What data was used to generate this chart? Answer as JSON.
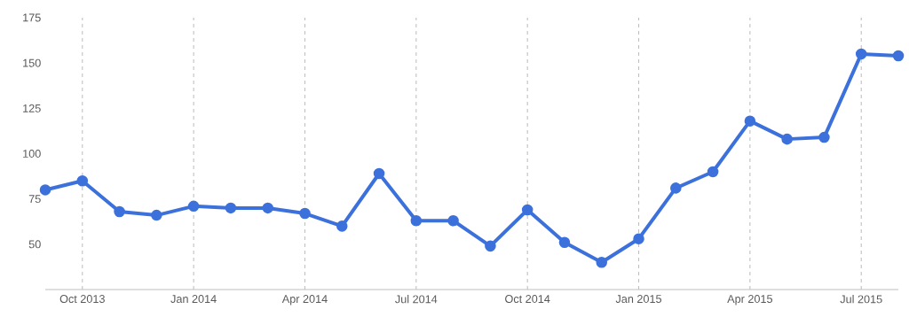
{
  "chart_data": {
    "type": "line",
    "x": [
      "2013-09",
      "2013-10",
      "2013-11",
      "2013-12",
      "2014-01",
      "2014-02",
      "2014-03",
      "2014-04",
      "2014-05",
      "2014-06",
      "2014-07",
      "2014-08",
      "2014-09",
      "2014-10",
      "2014-11",
      "2014-12",
      "2015-01",
      "2015-02",
      "2015-03",
      "2015-04",
      "2015-05",
      "2015-06",
      "2015-07",
      "2015-08"
    ],
    "values": [
      80,
      85,
      68,
      66,
      71,
      70,
      70,
      67,
      60,
      89,
      63,
      63,
      49,
      69,
      51,
      40,
      53,
      81,
      90,
      118,
      108,
      109,
      155,
      154
    ],
    "color": "#3c71dc",
    "marker": "circle",
    "line_style": "solid",
    "grid": "x",
    "xlim": [
      "2013-09",
      "2015-08"
    ],
    "xticks": [
      {
        "value": "2013-10",
        "label": "Oct 2013"
      },
      {
        "value": "2014-01",
        "label": "Jan 2014"
      },
      {
        "value": "2014-04",
        "label": "Apr 2014"
      },
      {
        "value": "2014-07",
        "label": "Jul 2014"
      },
      {
        "value": "2014-10",
        "label": "Oct 2014"
      },
      {
        "value": "2015-01",
        "label": "Jan 2015"
      },
      {
        "value": "2015-04",
        "label": "Apr 2015"
      },
      {
        "value": "2015-07",
        "label": "Jul 2015"
      }
    ],
    "ylim": [
      25,
      175
    ],
    "yticks": [
      50,
      75,
      100,
      125,
      150,
      175
    ]
  }
}
